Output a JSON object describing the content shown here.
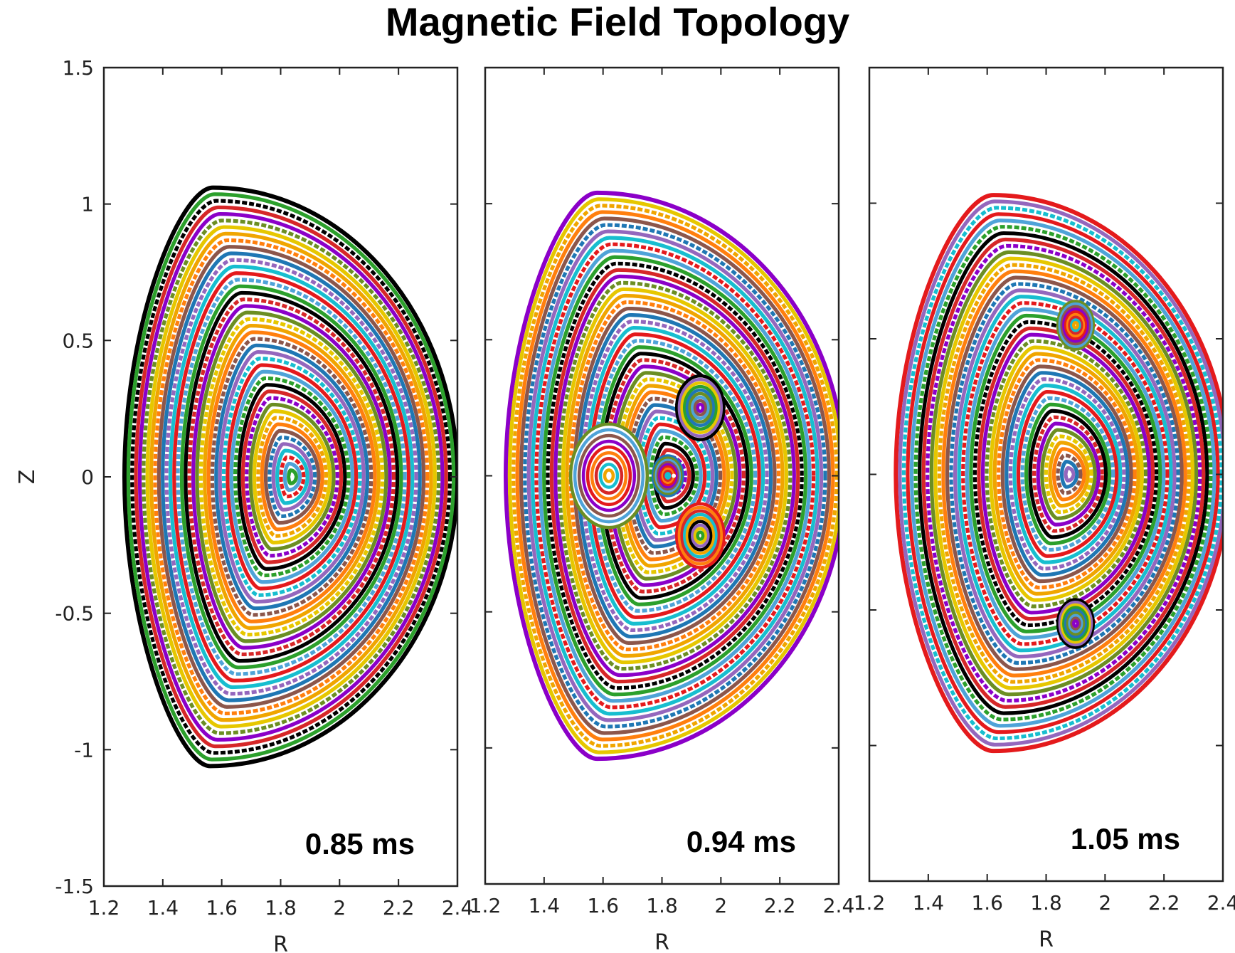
{
  "title": "Magnetic Field Topology",
  "chart_data": [
    {
      "type": "scatter",
      "title": "",
      "annotation": "0.85 ms",
      "xlabel": "R",
      "ylabel": "Z",
      "xlim": [
        1.2,
        2.4
      ],
      "ylim": [
        -1.5,
        1.5
      ],
      "xticks": [
        "1.2",
        "1.4",
        "1.6",
        "1.8",
        "2",
        "2.2",
        "2.4"
      ],
      "yticks": [
        "-1.5",
        "-1",
        "-0.5",
        "0",
        "0.5",
        "1",
        "1.5"
      ],
      "axis": {
        "r": 1.84,
        "z": 0.0
      },
      "boundary": {
        "r_in": 1.27,
        "r_out": 2.4,
        "r_top": 1.57,
        "z_top": 1.06,
        "r_bot": 1.56,
        "z_bot": -1.06
      },
      "islands": []
    },
    {
      "type": "scatter",
      "title": "",
      "annotation": "0.94 ms",
      "xlabel": "R",
      "ylabel": "",
      "xlim": [
        1.2,
        2.4
      ],
      "ylim": [
        -1.5,
        1.5
      ],
      "xticks": [
        "1.2",
        "1.4",
        "1.6",
        "1.8",
        "2",
        "2.2",
        "2.4"
      ],
      "yticks": [],
      "axis": {
        "r": 1.84,
        "z": 0.0
      },
      "boundary": {
        "r_in": 1.27,
        "r_out": 2.42,
        "r_top": 1.58,
        "z_top": 1.04,
        "r_bot": 1.58,
        "z_bot": -1.04
      },
      "islands": [
        {
          "r": 1.62,
          "z": 0.0,
          "size": 0.13
        },
        {
          "r": 1.93,
          "z": 0.25,
          "size": 0.08
        },
        {
          "r": 1.93,
          "z": -0.22,
          "size": 0.08
        },
        {
          "r": 1.82,
          "z": 0.0,
          "size": 0.05
        }
      ]
    },
    {
      "type": "scatter",
      "title": "",
      "annotation": "1.05 ms",
      "xlabel": "R",
      "ylabel": "",
      "xlim": [
        1.2,
        2.4
      ],
      "ylim": [
        -1.5,
        1.5
      ],
      "xticks": [
        "1.2",
        "1.4",
        "1.6",
        "1.8",
        "2",
        "2.2",
        "2.4"
      ],
      "yticks": [],
      "axis": {
        "r": 1.88,
        "z": 0.0
      },
      "boundary": {
        "r_in": 1.29,
        "r_out": 2.42,
        "r_top": 1.62,
        "z_top": 1.03,
        "r_bot": 1.62,
        "z_bot": -1.02
      },
      "islands": [
        {
          "r": 1.9,
          "z": 0.55,
          "size": 0.06
        },
        {
          "r": 1.9,
          "z": -0.55,
          "size": 0.06
        }
      ]
    }
  ],
  "colors": {
    "palette": [
      "#000000",
      "#e41a1c",
      "#1f77b4",
      "#f0a500",
      "#8b00c8",
      "#2ca02c",
      "#17becf",
      "#8c564b",
      "#e6c700",
      "#d62728",
      "#4fa3d8",
      "#9467bd",
      "#ff7f0e",
      "#6b8e23"
    ],
    "outer_edge": [
      "#000000",
      "#8b00c8",
      "#e41a1c"
    ]
  }
}
